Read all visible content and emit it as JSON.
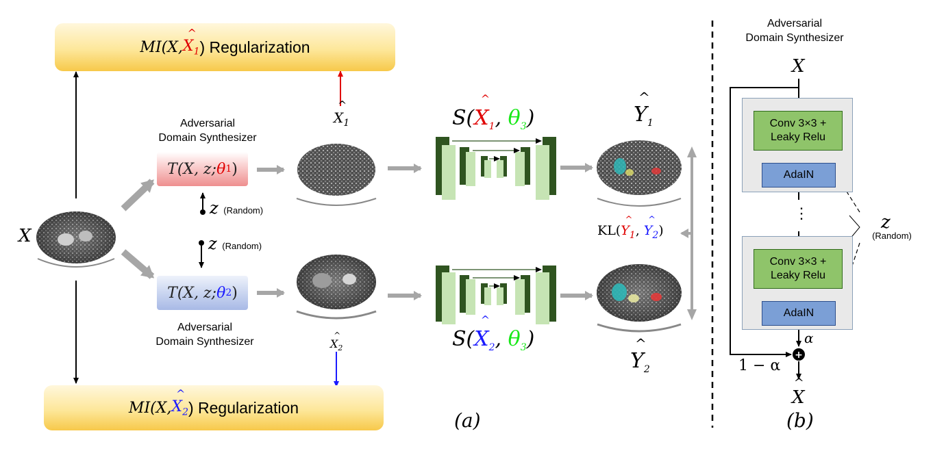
{
  "top_box": {
    "prefix": "MI(X, ",
    "sym": "X",
    "hat": "^",
    "sub": "1",
    "suffix": ") Regularization"
  },
  "bottom_box": {
    "prefix": "MI(X, ",
    "sym": "X",
    "hat": "^",
    "sub": "2",
    "suffix": ") Regularization"
  },
  "synth_label": "Adversarial\nDomain Synthesizer",
  "synth_top": {
    "a": "T(X, z; ",
    "theta": "θ",
    "sub": "1",
    "b": ")"
  },
  "synth_bot": {
    "a": "T(X, z; ",
    "theta": "θ",
    "sub": "2",
    "b": ")"
  },
  "x_label": "X",
  "z_label": "z",
  "random_label": "(Random)",
  "x1hat": {
    "sym": "X",
    "hat": "^",
    "sub": "1"
  },
  "x2hat": {
    "sym": "X",
    "hat": "^",
    "sub": "2"
  },
  "seg_top": {
    "a": "S(",
    "sym": "X",
    "hat": "^",
    "sub": "1",
    "mid": ", ",
    "theta": "θ",
    "tsub": "3",
    "b": ")"
  },
  "seg_bot": {
    "a": "S(",
    "sym": "X",
    "hat": "^",
    "sub": "2",
    "mid": ", ",
    "theta": "θ",
    "tsub": "3",
    "b": ")"
  },
  "y1": {
    "sym": "Y",
    "hat": "^",
    "sub": "1"
  },
  "y2": {
    "sym": "Y",
    "hat": "^",
    "sub": "2"
  },
  "kl": {
    "a": "KL(",
    "y": "Y",
    "hat": "^",
    "s1": "1",
    "mid": ", ",
    "s2": "2",
    "b": ")"
  },
  "caption_a": "(a)",
  "caption_b": "(b)",
  "panel_b": {
    "title": "Adversarial\nDomain Synthesizer",
    "input": "X",
    "conv_label": "Conv 3×3 +\nLeaky Relu",
    "adain_label": "AdaIN",
    "dots": "⋮",
    "alpha": "α",
    "one_minus_alpha": "1 − α",
    "output_sym": "X",
    "output_hat": "^",
    "z": "z",
    "random": "(Random)"
  },
  "colors": {
    "red": "#e00000",
    "blue": "#1a1aff",
    "green": "#17e817",
    "unet_dark": "#2f5420",
    "unet_light": "#c6e4b4",
    "gray_arrow": "#a6a6a6"
  }
}
